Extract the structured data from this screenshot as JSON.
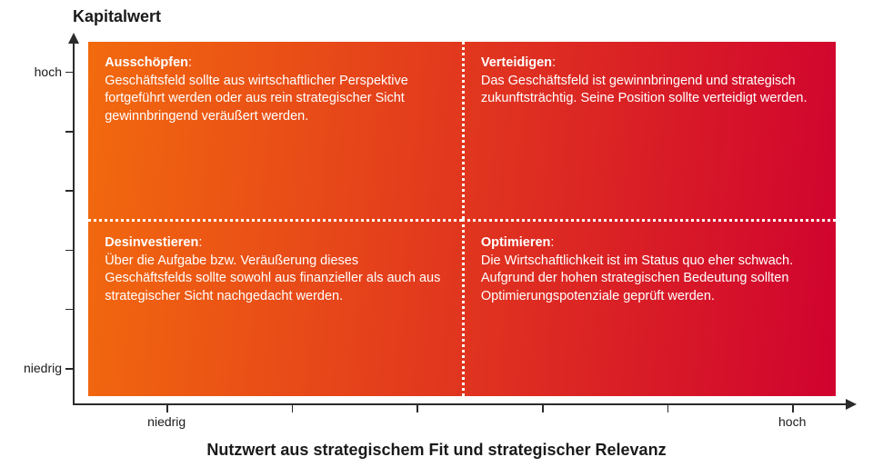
{
  "chart": {
    "type": "matrix-2x2",
    "y_title": "Kapitalwert",
    "x_title": "Nutzwert aus strategischem Fit und strategischer Relevanz",
    "title_fontsize": 18,
    "axis_label_fontsize": 14,
    "body_fontsize": 14.5,
    "matrix_rect": {
      "left_pct": 2.0,
      "top_pct": 2.0,
      "right_pct": 97.5,
      "bottom_pct": 97.5
    },
    "gradient": {
      "from": "#f26a0e",
      "to": "#d0022f",
      "angle_deg": 95
    },
    "text_color": "#ffffff",
    "axis_color": "#2b2b2b",
    "background_color": "#ffffff",
    "divider_style": "dotted",
    "divider_color": "#ffffff",
    "y_ticks": [
      {
        "pos_pct": 10,
        "label": "hoch"
      },
      {
        "pos_pct": 26,
        "label": ""
      },
      {
        "pos_pct": 42,
        "label": ""
      },
      {
        "pos_pct": 58,
        "label": ""
      },
      {
        "pos_pct": 74,
        "label": ""
      },
      {
        "pos_pct": 90,
        "label": "niedrig"
      }
    ],
    "x_ticks": [
      {
        "pos_pct": 12,
        "label": "niedrig"
      },
      {
        "pos_pct": 28,
        "label": ""
      },
      {
        "pos_pct": 44,
        "label": ""
      },
      {
        "pos_pct": 60,
        "label": ""
      },
      {
        "pos_pct": 76,
        "label": ""
      },
      {
        "pos_pct": 92,
        "label": "hoch"
      }
    ],
    "quadrants": {
      "top_left": {
        "title": "Ausschöpfen",
        "body": "Geschäftsfeld sollte aus wirtschaftlicher Perspektive fortgeführt werden oder aus rein strategischer Sicht gewinnbringend veräußert werden."
      },
      "top_right": {
        "title": "Verteidigen",
        "body": "Das Geschäftsfeld ist gewinnbringend und strategisch zukunftsträchtig. Seine Position sollte verteidigt werden."
      },
      "bot_left": {
        "title": "Desinvestieren",
        "body": "Über die Aufgabe bzw. Veräußerung dieses Geschäftsfelds sollte sowohl aus finanzieller als auch aus strategischer Sicht nachgedacht werden."
      },
      "bot_right": {
        "title": "Optimieren",
        "body": "Die Wirtschaftlichkeit ist im Status quo eher schwach. Aufgrund der hohen strategischen Bedeutung sollten Optimierungspotenziale geprüft werden."
      }
    }
  }
}
